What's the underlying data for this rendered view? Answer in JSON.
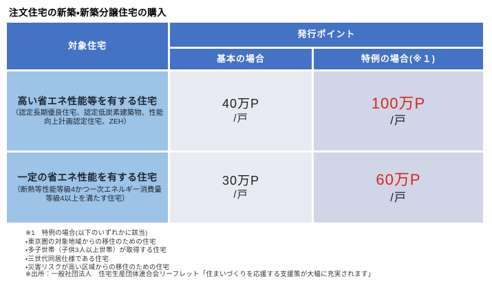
{
  "title": "注文住宅の新築・新築分譲住宅の購入",
  "colors": {
    "header_blue": "#4472c4",
    "label_blue": "#9dc3e6",
    "basic_bg": "#e9ebf4",
    "special_bg": "#d0d6e8",
    "accent_red": "#d9261c"
  },
  "table": {
    "headers": {
      "target": "対象住宅",
      "points": "発行ポイント",
      "basic": "基本の場合",
      "special": "特例の場合(※１)"
    },
    "rows": [
      {
        "label": "高い省エネ性能等を有する住宅",
        "sublabel": "（認定長期優良住宅、認定低炭素建築物、性能向上計画認定住宅、ZEH）",
        "basic_value": "40万P",
        "basic_unit": "/戸",
        "special_value": "100万P",
        "special_unit": "/戸"
      },
      {
        "label": "一定の省エネ性能を有する住宅",
        "sublabel": "（断熱等性能等級4かつ一次エネルギー消費量等級4以上を満たす住宅）",
        "basic_value": "30万P",
        "basic_unit": "/戸",
        "special_value": "60万P",
        "special_unit": "/戸"
      }
    ]
  },
  "footnotes": {
    "heading": "※1　特例の場合(以下のいずれかに該当)",
    "items": [
      "・東京圏の対象地域からの移住のための住宅",
      "・多子世帯（子供3人以上世帯）が取得する住宅",
      "・三世代同居仕様である住宅",
      "・災害リスクが高い区域からの移住のための住宅"
    ],
    "source": "※出所：一般社団法人　住宅生産団体連合会リーフレット「住まいづくりを応援する支援策が大幅に充実されます」"
  }
}
